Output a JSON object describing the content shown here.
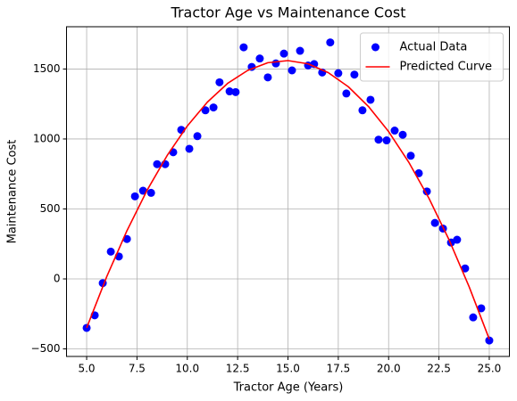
{
  "chart_data": {
    "type": "scatter",
    "title": "Tractor Age vs Maintenance Cost",
    "x_label": "Tractor Age (Years)",
    "y_label": "Maintenance Cost",
    "xlim": [
      4,
      26
    ],
    "ylim": [
      -554,
      1802
    ],
    "xticks": [
      {
        "value": 5,
        "label": "5.0"
      },
      7.5,
      {
        "value": 10,
        "label": "10.0"
      },
      12.5,
      {
        "value": 15,
        "label": "15.0"
      },
      17.5,
      {
        "value": 20,
        "label": "20.0"
      },
      22.5,
      {
        "value": 25,
        "label": "25.0"
      }
    ],
    "yticks": [
      {
        "value": -500,
        "label": "−500"
      },
      0,
      500,
      1000,
      1500
    ],
    "grid": true,
    "legend": "upper right",
    "series": [
      {
        "name": "Actual Data",
        "type": "scatter",
        "color": "#0000ff",
        "x": [
          5.0,
          5.4,
          5.8,
          6.2,
          6.6,
          7.0,
          7.4,
          7.8,
          8.2,
          8.5,
          8.9,
          9.3,
          9.7,
          10.1,
          10.5,
          10.9,
          11.3,
          11.6,
          12.1,
          12.4,
          12.8,
          13.2,
          13.6,
          14.0,
          14.4,
          14.8,
          15.2,
          15.6,
          16.0,
          16.3,
          16.7,
          17.1,
          17.5,
          17.9,
          18.3,
          18.7,
          19.1,
          19.5,
          19.9,
          20.3,
          20.7,
          21.1,
          21.5,
          21.9,
          22.3,
          22.7,
          23.1,
          23.4,
          23.8,
          24.2,
          24.6,
          25.0
        ],
        "values": [
          -350,
          -260,
          -30,
          195,
          160,
          285,
          590,
          630,
          615,
          820,
          820,
          905,
          1065,
          930,
          1020,
          1205,
          1225,
          1405,
          1340,
          1335,
          1655,
          1515,
          1575,
          1440,
          1540,
          1610,
          1490,
          1630,
          1525,
          1535,
          1475,
          1690,
          1470,
          1325,
          1460,
          1205,
          1280,
          995,
          990,
          1060,
          1030,
          880,
          755,
          625,
          400,
          360,
          260,
          280,
          75,
          -275,
          -210,
          -440
        ]
      },
      {
        "name": "Predicted Curve",
        "type": "line",
        "color": "#ff0000",
        "x": [
          5,
          6,
          7,
          8,
          9,
          10,
          11,
          12,
          13,
          14,
          15,
          16,
          17,
          18,
          19,
          20,
          21,
          22,
          23,
          24,
          25
        ],
        "values": [
          -350,
          17,
          344,
          633,
          882,
          1093,
          1264,
          1397,
          1490,
          1545,
          1560,
          1537,
          1474,
          1373,
          1232,
          1053,
          834,
          577,
          280,
          -56,
          -430
        ]
      }
    ]
  }
}
